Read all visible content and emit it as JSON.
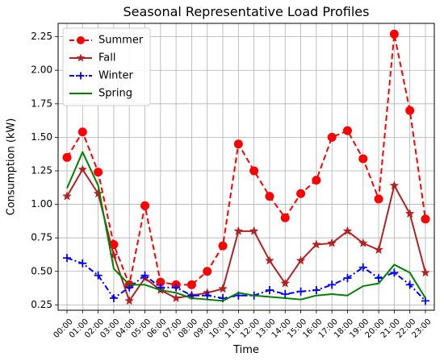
{
  "chart_data": {
    "type": "line",
    "title": "Seasonal Representative Load Profiles",
    "xlabel": "Time",
    "ylabel": "Consumption (kW)",
    "categories": [
      "00:00",
      "01:00",
      "02:00",
      "03:00",
      "04:00",
      "05:00",
      "06:00",
      "07:00",
      "08:00",
      "09:00",
      "10:00",
      "11:00",
      "12:00",
      "13:00",
      "14:00",
      "15:00",
      "16:00",
      "17:00",
      "18:00",
      "19:00",
      "20:00",
      "21:00",
      "22:00",
      "23:00"
    ],
    "ylim": [
      0.21,
      2.35
    ],
    "yticks": [
      "0.25",
      "0.50",
      "0.75",
      "1.00",
      "1.25",
      "1.50",
      "1.75",
      "2.00",
      "2.25"
    ],
    "ytick_values": [
      0.25,
      0.5,
      0.75,
      1.0,
      1.25,
      1.5,
      1.75,
      2.0,
      2.25
    ],
    "grid": true,
    "legend_position": "top-left",
    "series": [
      {
        "name": "Summer",
        "color": "#ff0000",
        "line_style": "dashed",
        "marker": "circle",
        "values": [
          1.35,
          1.54,
          1.24,
          0.7,
          0.4,
          0.99,
          0.42,
          0.4,
          0.4,
          0.5,
          0.69,
          1.45,
          1.25,
          1.06,
          0.9,
          1.08,
          1.18,
          1.5,
          1.55,
          1.34,
          1.04,
          2.27,
          1.7,
          0.89
        ]
      },
      {
        "name": "Fall",
        "color": "#b22222",
        "line_style": "solid",
        "marker": "star",
        "values": [
          1.06,
          1.26,
          1.08,
          0.62,
          0.28,
          0.45,
          0.36,
          0.3,
          0.32,
          0.34,
          0.37,
          0.8,
          0.8,
          0.58,
          0.41,
          0.58,
          0.7,
          0.71,
          0.8,
          0.71,
          0.66,
          1.14,
          0.93,
          0.49
        ]
      },
      {
        "name": "Winter",
        "color": "#0000ff",
        "line_style": "dashdot",
        "marker": "plus",
        "values": [
          0.6,
          0.56,
          0.47,
          0.3,
          0.38,
          0.47,
          0.38,
          0.38,
          0.32,
          0.32,
          0.3,
          0.32,
          0.32,
          0.36,
          0.33,
          0.35,
          0.36,
          0.4,
          0.45,
          0.53,
          0.45,
          0.49,
          0.4,
          0.28
        ]
      },
      {
        "name": "Spring",
        "color": "#008000",
        "line_style": "solid",
        "marker": "none",
        "values": [
          1.12,
          1.39,
          1.14,
          0.52,
          0.4,
          0.4,
          0.36,
          0.34,
          0.3,
          0.29,
          0.28,
          0.34,
          0.32,
          0.31,
          0.3,
          0.29,
          0.32,
          0.33,
          0.32,
          0.39,
          0.41,
          0.55,
          0.49,
          0.3
        ]
      }
    ]
  }
}
